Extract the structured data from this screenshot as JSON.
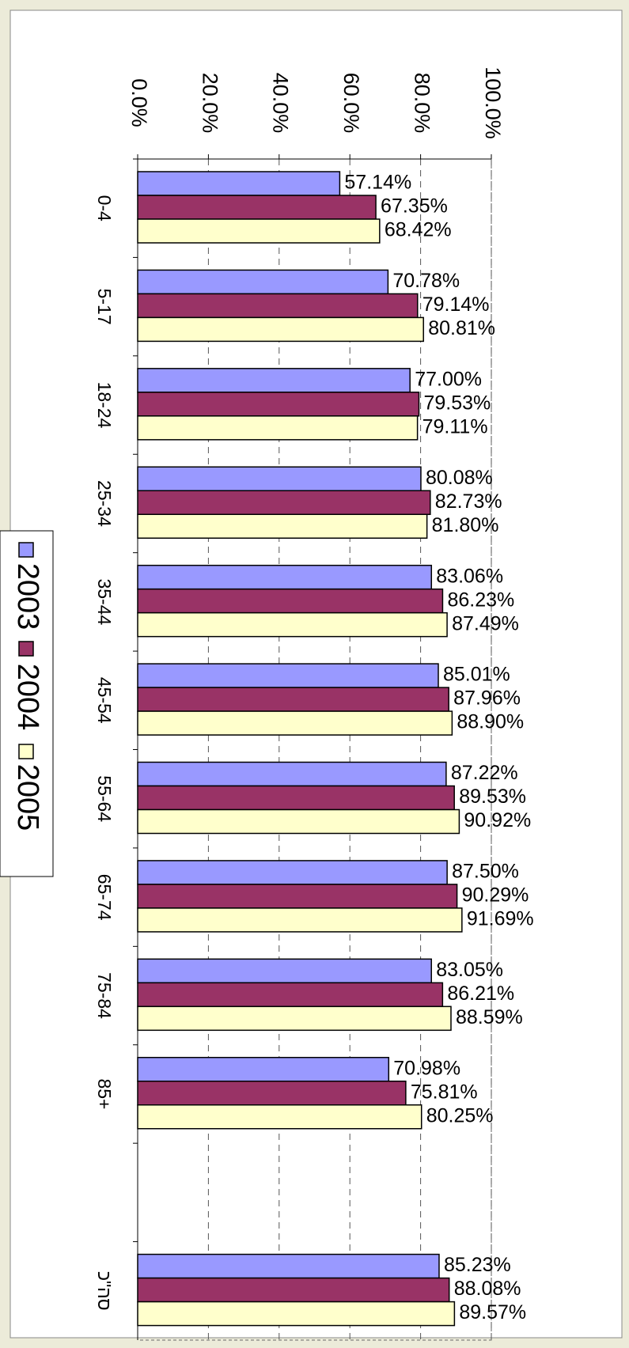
{
  "chart_data": {
    "type": "bar",
    "orientation": "horizontal",
    "categories": [
      "0-4",
      "5-17",
      "18-24",
      "25-34",
      "35-44",
      "45-54",
      "55-64",
      "65-74",
      "75-84",
      "85+",
      null,
      "סה\"כ"
    ],
    "series": [
      {
        "name": "2003",
        "color": "#9999ff",
        "values": [
          57.14,
          70.78,
          77.0,
          80.08,
          83.06,
          85.01,
          87.22,
          87.5,
          83.05,
          70.98,
          null,
          85.23
        ],
        "value_labels": [
          "57.14%",
          "70.78%",
          "77.00%",
          "80.08%",
          "83.06%",
          "85.01%",
          "87.22%",
          "87.50%",
          "83.05%",
          "70.98%",
          null,
          "85.23%"
        ]
      },
      {
        "name": "2004",
        "color": "#993366",
        "values": [
          67.35,
          79.14,
          79.53,
          82.73,
          86.23,
          87.96,
          89.53,
          90.29,
          86.21,
          75.81,
          null,
          88.08
        ],
        "value_labels": [
          "67.35%",
          "79.14%",
          "79.53%",
          "82.73%",
          "86.23%",
          "87.96%",
          "89.53%",
          "90.29%",
          "86.21%",
          "75.81%",
          null,
          "88.08%"
        ]
      },
      {
        "name": "2005",
        "color": "#ffffcc",
        "values": [
          68.42,
          80.81,
          79.11,
          81.8,
          87.49,
          88.9,
          90.92,
          91.69,
          88.59,
          80.25,
          null,
          89.57
        ],
        "value_labels": [
          "68.42%",
          "80.81%",
          "79.11%",
          "81.80%",
          "87.49%",
          "88.90%",
          "90.92%",
          "91.69%",
          "88.59%",
          "80.25%",
          null,
          "89.57%"
        ]
      }
    ],
    "xlim": [
      0,
      100
    ],
    "xticks": [
      {
        "value": 0,
        "label": "0.0%"
      },
      {
        "value": 20,
        "label": "20.0%"
      },
      {
        "value": 40,
        "label": "40.0%"
      },
      {
        "value": 60,
        "label": "60.0%"
      },
      {
        "value": 80,
        "label": "80.0%"
      },
      {
        "value": 100,
        "label": "100.0%"
      }
    ],
    "grid": true
  }
}
